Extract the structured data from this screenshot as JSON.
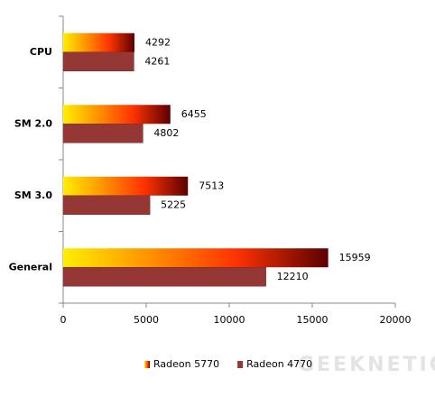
{
  "chart_data": {
    "type": "hbar",
    "categories": [
      "CPU",
      "SM 2.0",
      "SM 3.0",
      "General"
    ],
    "series": [
      {
        "name": "Radeon 5770",
        "color": "#ff3300",
        "values": [
          4292,
          6455,
          7513,
          15959
        ]
      },
      {
        "name": "Radeon 4770",
        "color": "#953735",
        "values": [
          4261,
          4802,
          5225,
          12210
        ]
      }
    ],
    "xlim": [
      0,
      20000
    ],
    "xticks": [
      0,
      5000,
      10000,
      15000,
      20000
    ],
    "legend": "bottom",
    "grid": false,
    "watermark": "GEEKNETIC"
  }
}
